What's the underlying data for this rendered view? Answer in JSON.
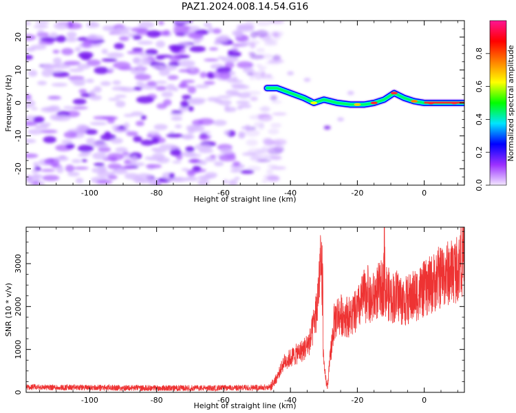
{
  "title": "PAZ1.2024.008.14.54.G16",
  "chart_data": [
    {
      "type": "heatmap",
      "xlabel": "Height of straight line (km)",
      "ylabel": "Frequency (Hz)",
      "xlim": [
        -119,
        12
      ],
      "ylim": [
        -25,
        25
      ],
      "xticks": [
        -100,
        -80,
        -60,
        -40,
        -20,
        0
      ],
      "yticks": [
        -20,
        -10,
        0,
        10,
        20
      ],
      "colorbar": {
        "label": "Normalized spectral amplitude",
        "range": [
          0,
          1
        ],
        "ticks": [
          0.0,
          0.2,
          0.4,
          0.6,
          0.8
        ],
        "colormap": [
          "#f2e6ff",
          "#9b30ff",
          "#0000ff",
          "#00e5ff",
          "#00ff00",
          "#ffff00",
          "#ff8000",
          "#ff0000",
          "#ff1493"
        ]
      },
      "noise_region_x": [
        -119,
        -47
      ],
      "noise_region_color": "#8a2be2",
      "signal_ridge": {
        "x": [
          -47,
          -44,
          -40,
          -36,
          -33,
          -30,
          -26,
          -22,
          -18,
          -15,
          -12,
          -9,
          -6,
          -3,
          0,
          4,
          8,
          12
        ],
        "y": [
          4.5,
          4.5,
          3.0,
          1.5,
          0.0,
          1.0,
          0.0,
          -0.5,
          -0.5,
          0.0,
          1.0,
          3.0,
          1.5,
          0.5,
          0.0,
          0.0,
          0.0,
          0.0
        ]
      }
    },
    {
      "type": "line",
      "xlabel": "Height of straight line (km)",
      "ylabel": "SNR (10 * v/v)",
      "xlim": [
        -119,
        12
      ],
      "ylim": [
        0,
        3850
      ],
      "xticks": [
        -100,
        -80,
        -60,
        -40,
        -20,
        0
      ],
      "yticks": [
        0,
        1000,
        2000,
        3000
      ],
      "color": "#ee3333",
      "envelope": {
        "x": [
          -119,
          -100,
          -80,
          -60,
          -46,
          -44,
          -42,
          -40,
          -38,
          -36,
          -34,
          -32,
          -31,
          -30,
          -29,
          -28,
          -27,
          -26,
          -24,
          -22,
          -20,
          -18,
          -16,
          -14,
          -12,
          -10,
          -8,
          -6,
          -4,
          -2,
          0,
          2,
          4,
          6,
          8,
          10,
          12
        ],
        "y": [
          120,
          110,
          100,
          100,
          120,
          350,
          700,
          800,
          900,
          1000,
          1200,
          2000,
          3200,
          600,
          100,
          900,
          1600,
          1800,
          1800,
          1750,
          1900,
          2250,
          2100,
          2350,
          2450,
          2200,
          2250,
          2100,
          2200,
          2300,
          2400,
          2500,
          2650,
          2750,
          2800,
          2900,
          3100
        ]
      },
      "spikes": [
        {
          "x": -30.5,
          "y": 3330
        },
        {
          "x": -12,
          "y": 3800
        },
        {
          "x": -17,
          "y": 2750
        },
        {
          "x": 11,
          "y": 3420
        }
      ]
    }
  ]
}
